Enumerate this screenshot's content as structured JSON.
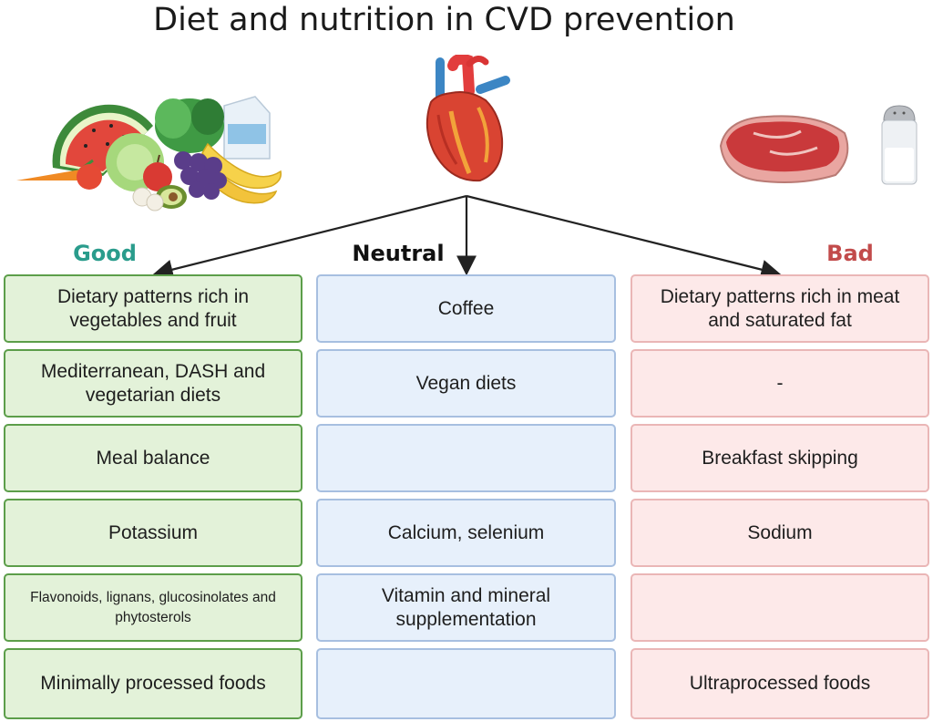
{
  "title": "Diet and nutrition in CVD prevention",
  "colors": {
    "good": "#2a9c8c",
    "neutral": "#111111",
    "bad": "#c24b4b"
  },
  "columns": [
    {
      "label": "Good",
      "cells": [
        "Dietary patterns rich in vegetables and fruit",
        "Mediterranean, DASH and vegetarian diets",
        "Meal balance",
        "Potassium",
        "Flavonoids, lignans, glucosinolates and phytosterols",
        "Minimally processed foods"
      ]
    },
    {
      "label": "Neutral",
      "cells": [
        "Coffee",
        "Vegan diets",
        "",
        "Calcium, selenium",
        "Vitamin and mineral supplementation",
        ""
      ]
    },
    {
      "label": "Bad",
      "cells": [
        "Dietary patterns rich in meat and saturated fat",
        "-",
        "Breakfast skipping",
        "Sodium",
        "",
        "Ultraprocessed foods"
      ]
    }
  ],
  "icons": [
    "fruits-vegetables-icon",
    "heart-icon",
    "meat-icon",
    "salt-shaker-icon"
  ]
}
